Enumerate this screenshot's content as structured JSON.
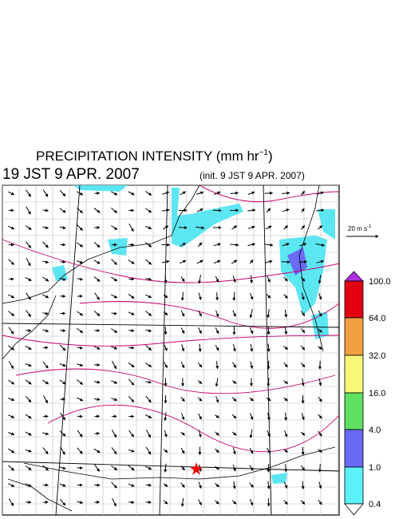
{
  "header": {
    "title": "PRECIPITATION INTENSITY (mm hr",
    "title_superscript": "−1",
    "title_close": ")",
    "valid_time": "19 JST 9 APR. 2007",
    "init_time": "(init. 9 JST 9 APR. 2007)"
  },
  "wind_scale": {
    "label": "20 m s",
    "superscript": "-1"
  },
  "colorbar": {
    "labels": [
      "100.0",
      "64.0",
      "32.0",
      "16.0",
      "4.0",
      "1.0",
      "0.4"
    ]
  }
}
